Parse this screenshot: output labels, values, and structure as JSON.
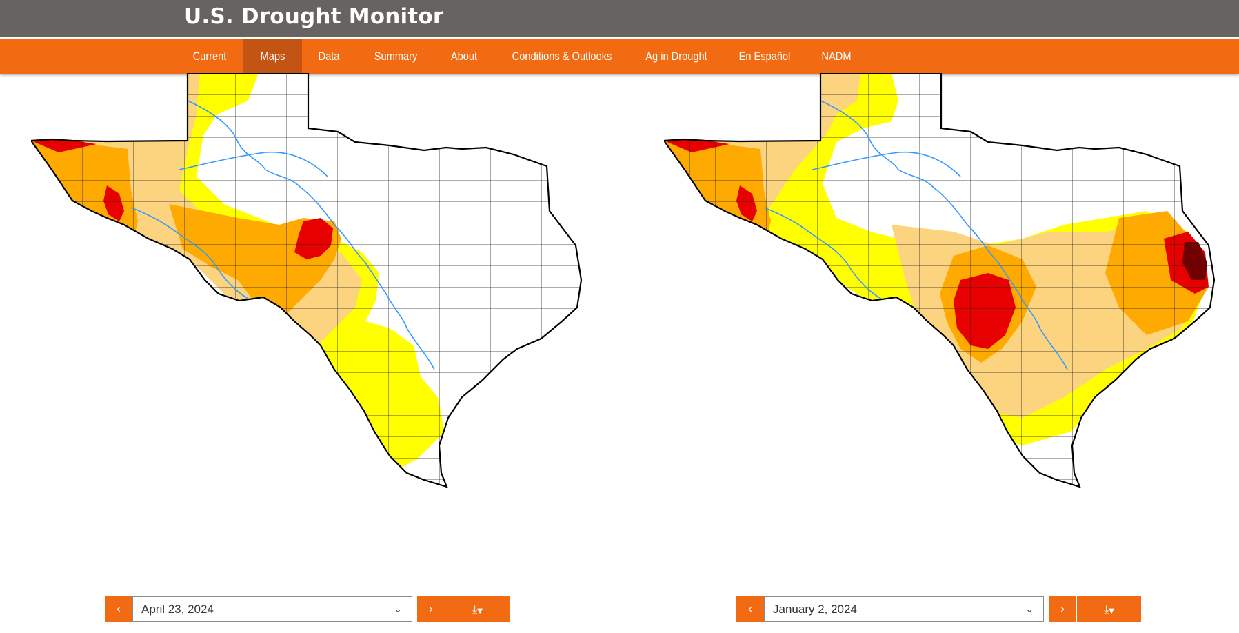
{
  "header": {
    "title": "U.S. Drought Monitor"
  },
  "nav": {
    "items": [
      {
        "label": "Current"
      },
      {
        "label": "Maps"
      },
      {
        "label": "Data"
      },
      {
        "label": "Summary"
      },
      {
        "label": "About"
      },
      {
        "label": "Conditions & Outlooks"
      },
      {
        "label": "Ag in Drought"
      },
      {
        "label": "En Español"
      },
      {
        "label": "NADM"
      }
    ],
    "active": "Maps"
  },
  "maps": [
    {
      "region": "Texas",
      "date": "April 23, 2024"
    },
    {
      "region": "Texas",
      "date": "January 2, 2024"
    }
  ],
  "icons": {
    "prev": "chevron-left-icon",
    "next": "chevron-right-icon",
    "select": "chevron-down-icon",
    "download": "download-icon",
    "menu": "caret-down-icon"
  },
  "colors": {
    "header_bg": "#676360",
    "nav_bg": "#f26b12",
    "nav_active": "#c45413",
    "D0": "#ffff00",
    "D1": "#fcd37f",
    "D2": "#ffaa00",
    "D3": "#e60000",
    "D4": "#730000",
    "rivers": "#3399ff"
  }
}
